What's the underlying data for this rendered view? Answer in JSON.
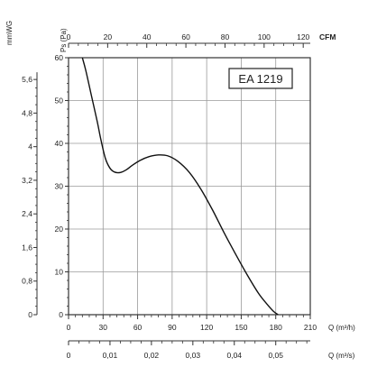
{
  "chart_data": {
    "type": "line",
    "title": "",
    "curve_label": "EA 1219",
    "primary_x_axis": {
      "label": "Q (m³/h)",
      "min": 0,
      "max": 210,
      "ticks": [
        0,
        30,
        60,
        90,
        120,
        150,
        180,
        210
      ]
    },
    "secondary_x_axis_bottom": {
      "label": "Q (m³/s)",
      "tick_values": [
        0,
        0.01,
        0.02,
        0.03,
        0.04,
        0.05
      ],
      "tick_labels": [
        "0",
        "0,01",
        "0,02",
        "0,03",
        "0,04",
        "0,05"
      ]
    },
    "secondary_x_axis_top": {
      "label": "CFM",
      "ticks": [
        0,
        20,
        40,
        60,
        80,
        100,
        120
      ]
    },
    "primary_y_axis": {
      "label": "Ps (Pa)",
      "min": 0,
      "max": 60,
      "ticks": [
        0,
        10,
        20,
        30,
        40,
        50,
        60
      ]
    },
    "secondary_y_axis": {
      "label": "mmWG",
      "tick_values": [
        0,
        0.8,
        1.6,
        2.4,
        3.2,
        4,
        4.8,
        5.6
      ],
      "tick_labels": [
        "0",
        "0,8",
        "1,6",
        "2,4",
        "3,2",
        "4",
        "4,8",
        "5,6"
      ]
    },
    "grid": true,
    "series": [
      {
        "x": [
          12,
          15,
          20,
          25,
          28,
          32,
          36,
          40,
          45,
          50,
          55,
          62,
          70,
          78,
          86,
          95,
          105,
          115,
          125,
          135,
          145,
          155,
          165,
          172,
          178,
          182
        ],
        "y": [
          60,
          57,
          51,
          45,
          41,
          36.5,
          34.2,
          33.3,
          33.2,
          33.8,
          34.8,
          36,
          36.9,
          37.3,
          37.1,
          35.8,
          33.2,
          29.3,
          24.5,
          19.2,
          14.2,
          9.4,
          5.0,
          2.6,
          0.8,
          0
        ]
      }
    ]
  }
}
